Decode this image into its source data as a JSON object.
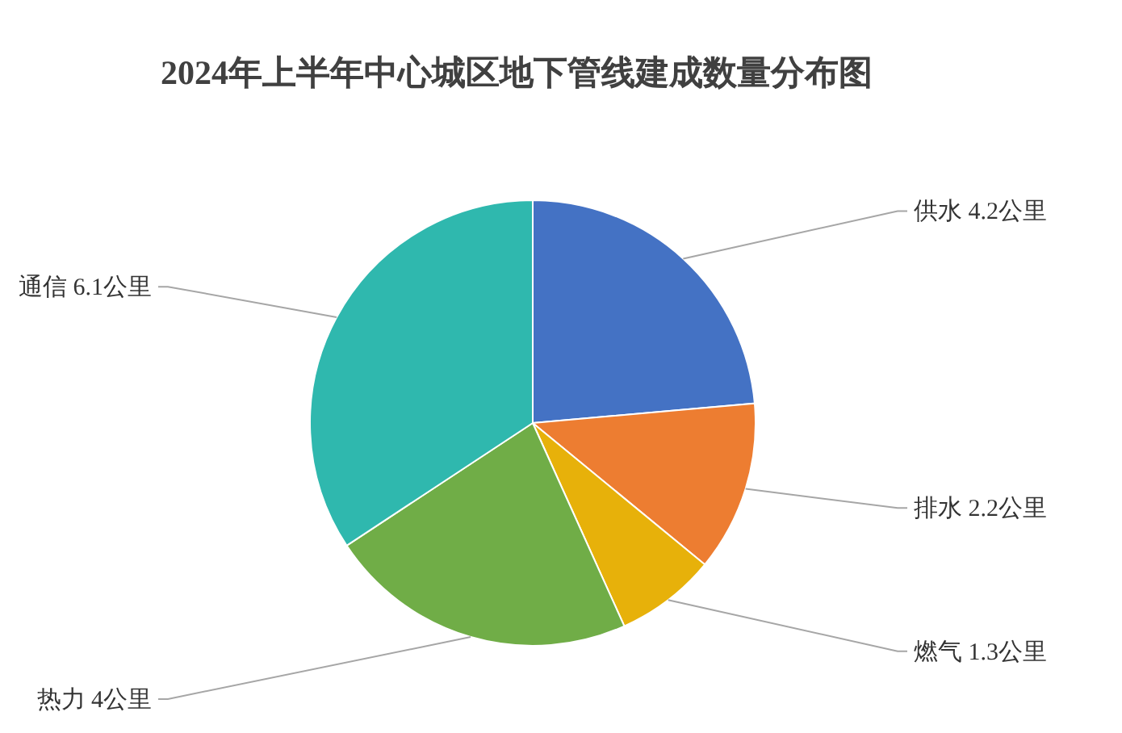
{
  "chart_data": {
    "type": "pie",
    "title": "2024年上半年中心城区地下管线建成数量分布图",
    "categories": [
      "供水",
      "排水",
      "燃气",
      "热力",
      "通信"
    ],
    "values": [
      4.2,
      2.2,
      1.3,
      4,
      6.1
    ],
    "colors": [
      "#4472c4",
      "#ed7d31",
      "#e7b10a",
      "#70ad47",
      "#2fb8ae"
    ],
    "value_labels": [
      "4.2公里",
      "2.2公里",
      "1.3公里",
      "4公里",
      "6.1公里"
    ]
  }
}
